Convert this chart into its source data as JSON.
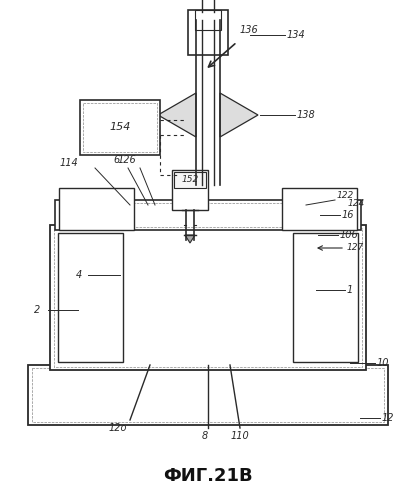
{
  "title": "ФИГ.21В",
  "bg_color": "#ffffff",
  "lc": "#2a2a2a",
  "lw": 1.0,
  "fig_width": 4.16,
  "fig_height": 5.0,
  "dpi": 100
}
